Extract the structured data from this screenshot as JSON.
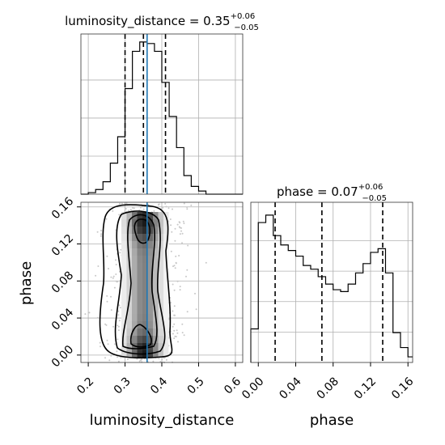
{
  "chart_data": [
    {
      "panel": "top-left",
      "type": "histogram",
      "parameter": "luminosity_distance",
      "title_main": "luminosity_distance = 0.35",
      "title_sup": "+0.06",
      "title_sub": "−0.05",
      "xlim": [
        0.18,
        0.62
      ],
      "bins": {
        "edges": [
          0.18,
          0.2,
          0.22,
          0.24,
          0.26,
          0.28,
          0.3,
          0.32,
          0.34,
          0.36,
          0.38,
          0.4,
          0.42,
          0.44,
          0.46,
          0.48,
          0.5,
          0.52,
          0.54,
          0.56,
          0.58,
          0.6,
          0.62
        ],
        "counts": [
          0,
          1,
          3,
          8,
          20,
          37,
          68,
          92,
          98,
          97,
          92,
          72,
          50,
          30,
          12,
          5,
          2,
          0,
          0,
          0,
          0,
          0
        ]
      },
      "quantiles": [
        0.3,
        0.35,
        0.41
      ],
      "truth": 0.36,
      "grid": true
    },
    {
      "panel": "bottom-left",
      "type": "heatmap",
      "xlabel": "luminosity_distance",
      "ylabel": "phase",
      "xlim": [
        0.18,
        0.62
      ],
      "ylim": [
        -0.008,
        0.165
      ],
      "xticks": [
        "0.2",
        "0.3",
        "0.4",
        "0.5",
        "0.6"
      ],
      "yticks": [
        "0.00",
        "0.04",
        "0.08",
        "0.12",
        "0.16"
      ],
      "truth_x": 0.36,
      "contour_levels": 4,
      "grid": true
    },
    {
      "panel": "bottom-right",
      "type": "histogram",
      "parameter": "phase",
      "title_main": "phase = 0.07",
      "title_sup": "+0.06",
      "title_sub": "−0.05",
      "xlabel": "phase",
      "xlim": [
        -0.008,
        0.165
      ],
      "xticks": [
        "0.00",
        "0.04",
        "0.08",
        "0.12",
        "0.16"
      ],
      "bins": {
        "edges": [
          -0.008,
          0,
          0.008,
          0.016,
          0.024,
          0.032,
          0.04,
          0.048,
          0.056,
          0.064,
          0.072,
          0.08,
          0.088,
          0.096,
          0.104,
          0.112,
          0.12,
          0.128,
          0.136,
          0.144,
          0.152,
          0.16,
          0.165
        ],
        "counts": [
          18,
          75,
          79,
          68,
          63,
          60,
          57,
          52,
          50,
          46,
          42,
          39,
          38,
          42,
          48,
          53,
          59,
          61,
          48,
          16,
          8,
          3
        ]
      },
      "quantiles": [
        0.018,
        0.068,
        0.133
      ],
      "grid": true
    }
  ]
}
